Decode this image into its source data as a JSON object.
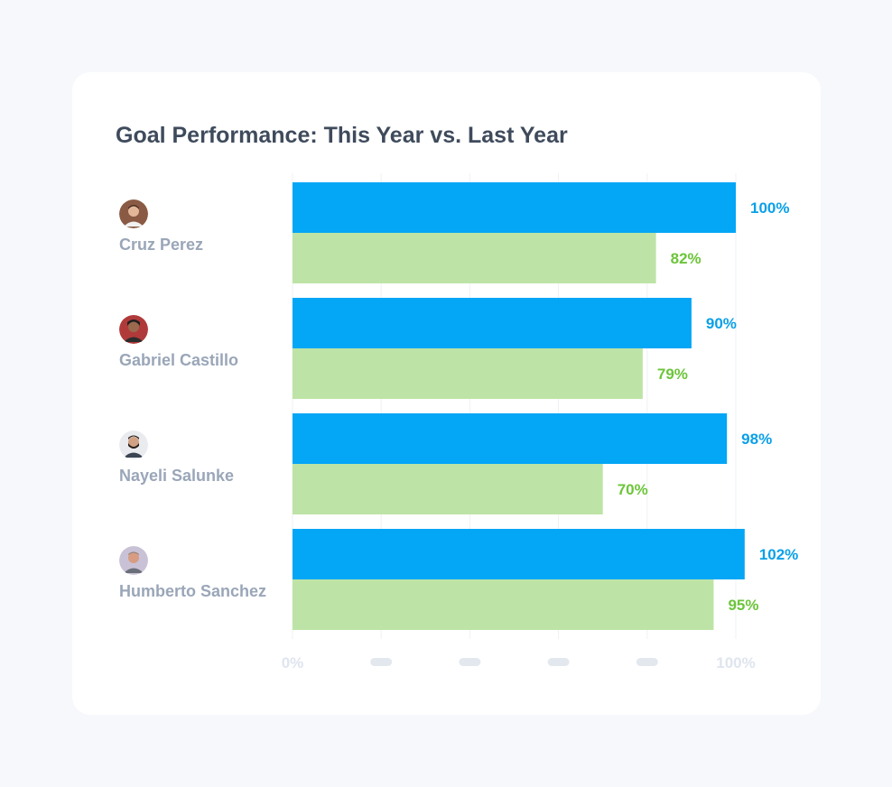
{
  "card": {
    "title": "Goal Performance: This Year vs. Last Year"
  },
  "colors": {
    "this_year_bar": "#04a6f6",
    "this_year_text": "#0aa0e8",
    "last_year_bar": "#bde4a6",
    "last_year_text": "#6cc53a",
    "grid": "#eef1f5",
    "tick_pill": "#e3e8ef"
  },
  "people": [
    {
      "name": "Cruz Perez",
      "avatar_icon": "person-avatar-icon"
    },
    {
      "name": "Gabriel Castillo",
      "avatar_icon": "person-avatar-icon"
    },
    {
      "name": "Nayeli Salunke",
      "avatar_icon": "person-avatar-icon"
    },
    {
      "name": "Humberto Sanchez",
      "avatar_icon": "person-avatar-icon"
    }
  ],
  "chart_data": {
    "type": "bar",
    "orientation": "horizontal",
    "title": "Goal Performance: This Year vs. Last Year",
    "categories": [
      "Cruz Perez",
      "Gabriel Castillo",
      "Nayeli Salunke",
      "Humberto Sanchez"
    ],
    "series": [
      {
        "values": [
          100,
          90,
          98,
          102
        ],
        "labels": [
          "100%",
          "90%",
          "98%",
          "102%"
        ]
      },
      {
        "values": [
          82,
          79,
          70,
          95
        ],
        "labels": [
          "82%",
          "79%",
          "70%",
          "95%"
        ]
      }
    ],
    "xlim": [
      0,
      100
    ],
    "x_ticks": [
      0,
      20,
      40,
      60,
      80,
      100
    ],
    "x_tick_labels": [
      "0%",
      "",
      "",
      "",
      "",
      "100%"
    ],
    "grid": true,
    "legend": "none"
  }
}
